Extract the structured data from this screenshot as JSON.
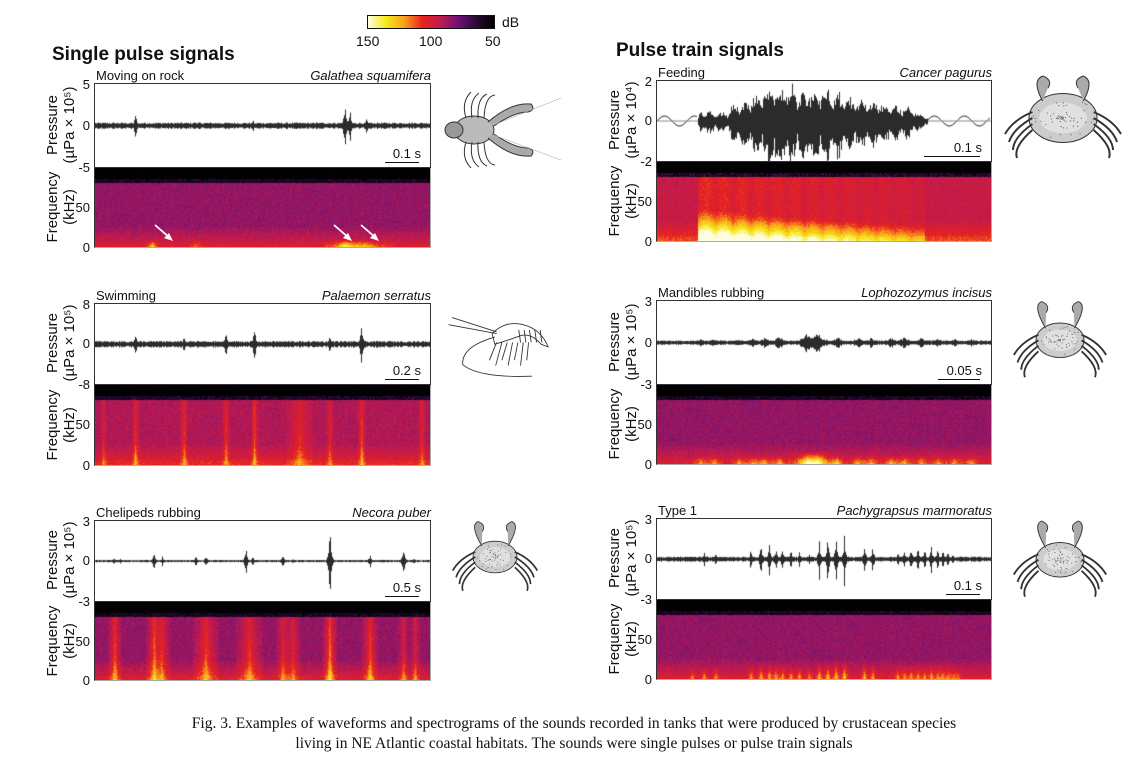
{
  "colorbar": {
    "unit": "dB",
    "ticks": [
      "150",
      "100",
      "50"
    ],
    "range_db": [
      150,
      50
    ],
    "colors": [
      "#fffde0",
      "#f5e81a",
      "#f9a31c",
      "#e8231f",
      "#c21a4d",
      "#6e1375",
      "#2a0a36",
      "#000000"
    ]
  },
  "sections": {
    "single": "Single pulse signals",
    "train": "Pulse train signals"
  },
  "axis_labels": {
    "pressure": "Pressure",
    "pressure_unit_1e5": "(µPa × 10⁵)",
    "pressure_unit_1e4": "(µPa × 10⁴)",
    "frequency": "Frequency",
    "frequency_unit": "(kHz)"
  },
  "caption": {
    "line1": "Fig. 3. Examples of waveforms and spectrograms of the sounds recorded in tanks that were produced by crustacean species",
    "line2": "living in NE Atlantic coastal habitats. The sounds were single pulses or pulse train signals"
  },
  "chart_data": [
    {
      "type": "waveform+spectrogram",
      "group": "Single pulse signals",
      "behaviour": "Moving on rock",
      "species": "Galathea squamifera",
      "illustration": "squat-lobster",
      "pressure_unit": "µPa × 10⁵",
      "ylim_pressure": [
        -5,
        5
      ],
      "pressure_ticks": [
        "5",
        "0",
        "-5"
      ],
      "freq_ticks": [
        "50",
        "0"
      ],
      "ylim_freq_khz": [
        0,
        80
      ],
      "scale_bar": "0.1 s",
      "pulses": [
        {
          "t": 0.12,
          "amp": 2.0
        },
        {
          "t": 0.3,
          "amp": 0.8
        },
        {
          "t": 0.47,
          "amp": 1.0
        },
        {
          "t": 0.66,
          "amp": 0.5
        },
        {
          "t": 0.745,
          "amp": 4.0
        },
        {
          "t": 0.76,
          "amp": 2.5
        },
        {
          "t": 0.81,
          "amp": 1.2
        }
      ],
      "noise_level": 0.35,
      "arrows_at": [
        0.12,
        0.65,
        0.73
      ],
      "spec_hotspots": [
        {
          "t": 0.17,
          "w": 0.01,
          "f": 3,
          "i": 0.9
        },
        {
          "t": 0.3,
          "w": 0.01,
          "f": 3,
          "i": 0.5
        },
        {
          "t": 0.745,
          "w": 0.03,
          "f": 4,
          "i": 1.0
        },
        {
          "t": 0.81,
          "w": 0.04,
          "f": 3,
          "i": 0.7
        }
      ],
      "spec_base": 0.35
    },
    {
      "type": "waveform+spectrogram",
      "group": "Pulse train signals",
      "behaviour": "Feeding",
      "species": "Cancer pagurus",
      "illustration": "crab-edible",
      "pressure_unit": "µPa × 10⁴",
      "ylim_pressure": [
        -2,
        2
      ],
      "pressure_ticks": [
        "2",
        "0",
        "-2"
      ],
      "freq_ticks": [
        "50",
        "0"
      ],
      "ylim_freq_khz": [
        0,
        80
      ],
      "scale_bar": "0.1 s",
      "envelope": [
        [
          0.0,
          0.1
        ],
        [
          0.12,
          0.1
        ],
        [
          0.13,
          0.6
        ],
        [
          0.21,
          0.5
        ],
        [
          0.22,
          0.9
        ],
        [
          0.27,
          1.2
        ],
        [
          0.33,
          2.0
        ],
        [
          0.37,
          2.1
        ],
        [
          0.42,
          1.9
        ],
        [
          0.46,
          2.0
        ],
        [
          0.54,
          1.6
        ],
        [
          0.62,
          1.3
        ],
        [
          0.68,
          1.0
        ],
        [
          0.75,
          0.8
        ],
        [
          0.79,
          0.4
        ],
        [
          0.81,
          0.2
        ],
        [
          1.0,
          0.15
        ]
      ],
      "spec_segments": [
        {
          "t0": 0.12,
          "t1": 0.8,
          "peak": 1.0,
          "decay": true
        }
      ],
      "spec_base": 0.45
    },
    {
      "type": "waveform+spectrogram",
      "group": "Single pulse signals",
      "behaviour": "Swimming",
      "species": "Palaemon serratus",
      "illustration": "prawn",
      "pressure_unit": "µPa × 10⁵",
      "ylim_pressure": [
        -8,
        8
      ],
      "pressure_ticks": [
        "8",
        "0",
        "-8"
      ],
      "freq_ticks": [
        "50",
        "0"
      ],
      "ylim_freq_khz": [
        0,
        80
      ],
      "scale_bar": "0.2 s",
      "pulses": [
        {
          "t": 0.12,
          "amp": 3.5
        },
        {
          "t": 0.265,
          "amp": 2.2
        },
        {
          "t": 0.39,
          "amp": 3.0
        },
        {
          "t": 0.475,
          "amp": 4.5
        },
        {
          "t": 0.61,
          "amp": 1.2
        },
        {
          "t": 0.7,
          "amp": 2.3
        },
        {
          "t": 0.795,
          "amp": 5.5
        },
        {
          "t": 0.975,
          "amp": 1.2
        }
      ],
      "noise_level": 0.6,
      "spec_hotspots": [
        {
          "t": 0.025,
          "w": 0.005,
          "f": 40,
          "i": 0.4
        },
        {
          "t": 0.12,
          "w": 0.006,
          "f": 40,
          "i": 0.6
        },
        {
          "t": 0.265,
          "w": 0.006,
          "f": 70,
          "i": 0.55
        },
        {
          "t": 0.39,
          "w": 0.006,
          "f": 70,
          "i": 0.55
        },
        {
          "t": 0.475,
          "w": 0.006,
          "f": 70,
          "i": 0.6
        },
        {
          "t": 0.61,
          "w": 0.02,
          "f": 70,
          "i": 0.45
        },
        {
          "t": 0.7,
          "w": 0.006,
          "f": 70,
          "i": 0.45
        },
        {
          "t": 0.795,
          "w": 0.006,
          "f": 70,
          "i": 0.65
        },
        {
          "t": 0.975,
          "w": 0.006,
          "f": 70,
          "i": 0.45
        }
      ],
      "spec_base": 0.4,
      "spec_vertical": true
    },
    {
      "type": "waveform+spectrogram",
      "group": "Pulse train signals",
      "behaviour": "Mandibles rubbing",
      "species": "Lophozozymus incisus",
      "illustration": "crab-small",
      "pressure_unit": "µPa × 10⁵",
      "ylim_pressure": [
        -3,
        3
      ],
      "pressure_ticks": [
        "3",
        "0",
        "-3"
      ],
      "freq_ticks": [
        "50",
        "0"
      ],
      "ylim_freq_khz": [
        0,
        80
      ],
      "scale_bar": "0.05 s",
      "pulses": [
        {
          "t": 0.13,
          "amp": 0.3
        },
        {
          "t": 0.17,
          "amp": 0.3
        },
        {
          "t": 0.245,
          "amp": 0.3
        },
        {
          "t": 0.285,
          "amp": 0.35
        },
        {
          "t": 0.32,
          "amp": 0.4
        },
        {
          "t": 0.365,
          "amp": 0.5
        },
        {
          "t": 0.45,
          "amp": 0.9
        },
        {
          "t": 0.48,
          "amp": 0.9
        },
        {
          "t": 0.54,
          "amp": 0.5
        },
        {
          "t": 0.6,
          "amp": 0.45
        },
        {
          "t": 0.64,
          "amp": 0.4
        },
        {
          "t": 0.7,
          "amp": 0.45
        },
        {
          "t": 0.74,
          "amp": 0.5
        },
        {
          "t": 0.79,
          "amp": 0.4
        },
        {
          "t": 0.84,
          "amp": 0.35
        },
        {
          "t": 0.89,
          "amp": 0.3
        },
        {
          "t": 0.94,
          "amp": 0.3
        }
      ],
      "pulse_width": 0.02,
      "noise_level": 0.15,
      "spec_hotspots": [
        {
          "t": 0.13,
          "w": 0.015,
          "f": 5,
          "i": 0.6
        },
        {
          "t": 0.17,
          "w": 0.015,
          "f": 5,
          "i": 0.6
        },
        {
          "t": 0.245,
          "w": 0.015,
          "f": 5,
          "i": 0.6
        },
        {
          "t": 0.285,
          "w": 0.015,
          "f": 5,
          "i": 0.6
        },
        {
          "t": 0.32,
          "w": 0.015,
          "f": 5,
          "i": 0.7
        },
        {
          "t": 0.365,
          "w": 0.015,
          "f": 5,
          "i": 0.75
        },
        {
          "t": 0.45,
          "w": 0.03,
          "f": 9,
          "i": 1.0
        },
        {
          "t": 0.48,
          "w": 0.03,
          "f": 9,
          "i": 1.0
        },
        {
          "t": 0.54,
          "w": 0.015,
          "f": 5,
          "i": 0.75
        },
        {
          "t": 0.6,
          "w": 0.015,
          "f": 5,
          "i": 0.7
        },
        {
          "t": 0.64,
          "w": 0.015,
          "f": 5,
          "i": 0.7
        },
        {
          "t": 0.7,
          "w": 0.015,
          "f": 5,
          "i": 0.75
        },
        {
          "t": 0.74,
          "w": 0.015,
          "f": 5,
          "i": 0.7
        },
        {
          "t": 0.79,
          "w": 0.015,
          "f": 5,
          "i": 0.65
        },
        {
          "t": 0.84,
          "w": 0.015,
          "f": 5,
          "i": 0.6
        },
        {
          "t": 0.89,
          "w": 0.015,
          "f": 5,
          "i": 0.6
        },
        {
          "t": 0.94,
          "w": 0.015,
          "f": 5,
          "i": 0.6
        }
      ],
      "spec_base": 0.35
    },
    {
      "type": "waveform+spectrogram",
      "group": "Single pulse signals",
      "behaviour": "Chelipeds rubbing",
      "species": "Necora puber",
      "illustration": "crab-velvet",
      "pressure_unit": "µPa × 10⁵",
      "ylim_pressure": [
        -3,
        3
      ],
      "pressure_ticks": [
        "3",
        "0",
        "-3"
      ],
      "freq_ticks": [
        "50",
        "0"
      ],
      "ylim_freq_khz": [
        0,
        80
      ],
      "scale_bar": "0.5 s",
      "pulses": [
        {
          "t": 0.055,
          "amp": 0.3
        },
        {
          "t": 0.075,
          "amp": 0.25
        },
        {
          "t": 0.175,
          "amp": 0.9
        },
        {
          "t": 0.2,
          "amp": 0.4
        },
        {
          "t": 0.3,
          "amp": 0.6
        },
        {
          "t": 0.33,
          "amp": 0.5
        },
        {
          "t": 0.45,
          "amp": 1.2
        },
        {
          "t": 0.47,
          "amp": 0.4
        },
        {
          "t": 0.56,
          "amp": 0.6
        },
        {
          "t": 0.59,
          "amp": 0.3
        },
        {
          "t": 0.7,
          "amp": 3.2
        },
        {
          "t": 0.82,
          "amp": 0.6
        },
        {
          "t": 0.92,
          "amp": 1.2
        },
        {
          "t": 0.95,
          "amp": 0.3
        }
      ],
      "noise_level": 0.08,
      "spec_hotspots": [
        {
          "t": 0.058,
          "w": 0.01,
          "f": 70,
          "i": 0.75
        },
        {
          "t": 0.175,
          "w": 0.012,
          "f": 70,
          "i": 0.8
        },
        {
          "t": 0.2,
          "w": 0.012,
          "f": 70,
          "i": 0.6
        },
        {
          "t": 0.33,
          "w": 0.02,
          "f": 70,
          "i": 0.7
        },
        {
          "t": 0.46,
          "w": 0.02,
          "f": 70,
          "i": 0.65
        },
        {
          "t": 0.56,
          "w": 0.01,
          "f": 70,
          "i": 0.6
        },
        {
          "t": 0.59,
          "w": 0.012,
          "f": 70,
          "i": 0.55
        },
        {
          "t": 0.7,
          "w": 0.01,
          "f": 75,
          "i": 0.95
        },
        {
          "t": 0.82,
          "w": 0.012,
          "f": 70,
          "i": 0.75
        },
        {
          "t": 0.92,
          "w": 0.008,
          "f": 30,
          "i": 0.6
        },
        {
          "t": 0.955,
          "w": 0.008,
          "f": 20,
          "i": 0.6
        }
      ],
      "spec_base": 0.35,
      "spec_vertical": true
    },
    {
      "type": "waveform+spectrogram",
      "group": "Pulse train signals",
      "behaviour": "Type 1",
      "species": "Pachygrapsus marmoratus",
      "illustration": "crab-marbled",
      "pressure_unit": "µPa × 10⁵",
      "ylim_pressure": [
        -3,
        3
      ],
      "pressure_ticks": [
        "3",
        "0",
        "-3"
      ],
      "freq_ticks": [
        "50",
        "0"
      ],
      "ylim_freq_khz": [
        0,
        80
      ],
      "scale_bar": "0.1 s",
      "pulses": [
        {
          "t": 0.105,
          "amp": 0.3
        },
        {
          "t": 0.14,
          "amp": 0.8
        },
        {
          "t": 0.175,
          "amp": 0.6
        },
        {
          "t": 0.28,
          "amp": 1.0
        },
        {
          "t": 0.31,
          "amp": 1.5
        },
        {
          "t": 0.335,
          "amp": 1.4
        },
        {
          "t": 0.355,
          "amp": 1.2
        },
        {
          "t": 0.375,
          "amp": 1.1
        },
        {
          "t": 0.4,
          "amp": 0.9
        },
        {
          "t": 0.425,
          "amp": 0.7
        },
        {
          "t": 0.455,
          "amp": 0.4
        },
        {
          "t": 0.485,
          "amp": 1.7
        },
        {
          "t": 0.51,
          "amp": 2.0
        },
        {
          "t": 0.535,
          "amp": 2.3
        },
        {
          "t": 0.56,
          "amp": 2.1
        },
        {
          "t": 0.62,
          "amp": 1.4
        },
        {
          "t": 0.645,
          "amp": 1.3
        },
        {
          "t": 0.72,
          "amp": 0.8
        },
        {
          "t": 0.74,
          "amp": 0.9
        },
        {
          "t": 0.76,
          "amp": 1.0
        },
        {
          "t": 0.78,
          "amp": 1.1
        },
        {
          "t": 0.8,
          "amp": 1.0
        },
        {
          "t": 0.82,
          "amp": 1.2
        },
        {
          "t": 0.84,
          "amp": 1.1
        },
        {
          "t": 0.855,
          "amp": 0.9
        },
        {
          "t": 0.87,
          "amp": 0.7
        },
        {
          "t": 0.885,
          "amp": 0.5
        },
        {
          "t": 0.9,
          "amp": 0.3
        }
      ],
      "noise_level": 0.18,
      "spec_hotspots": [],
      "spec_from_pulses": true,
      "spec_base": 0.35
    }
  ]
}
